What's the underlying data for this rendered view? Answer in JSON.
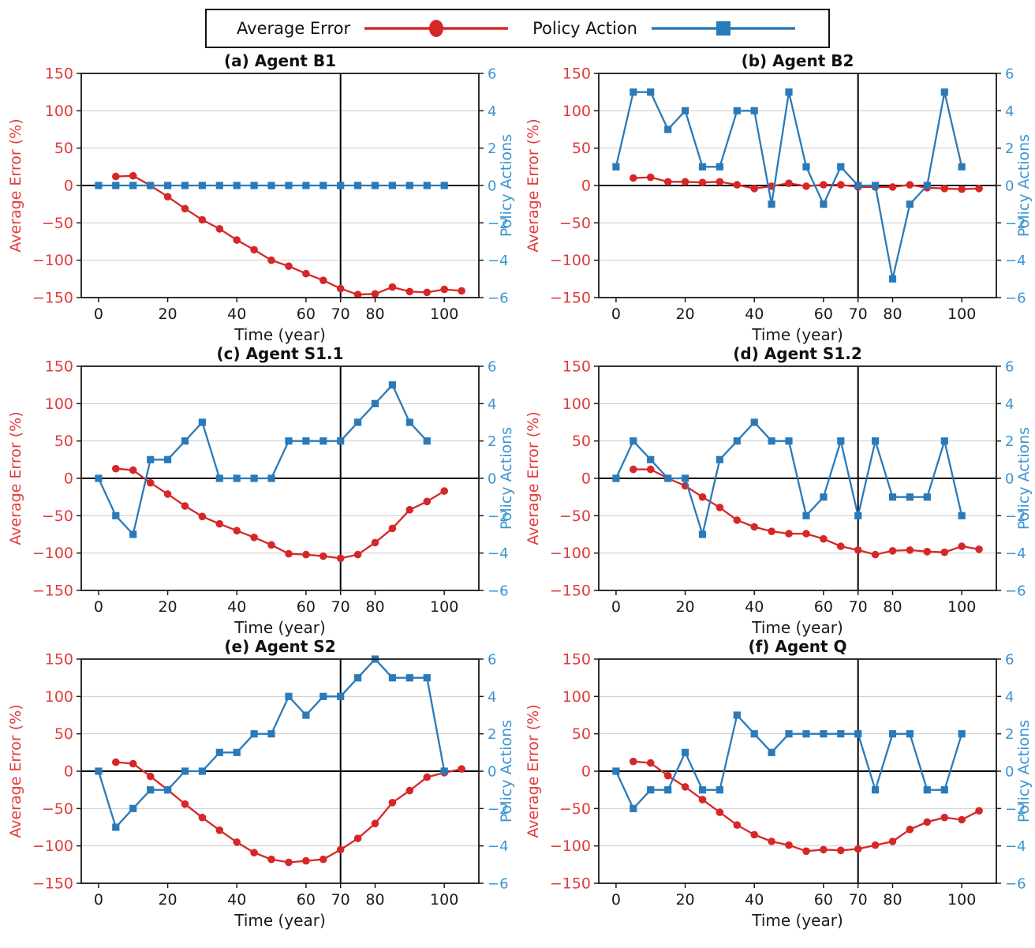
{
  "figure": {
    "legend": {
      "items": [
        {
          "label": "Average Error",
          "marker": "circle-icon"
        },
        {
          "label": "Policy Action",
          "marker": "square-icon"
        }
      ]
    },
    "axes": {
      "x_label": "Time (year)",
      "left_label": "Average Error (%)",
      "right_label": "Policy Actions",
      "x_ticks": [
        0,
        20,
        40,
        60,
        70,
        80,
        100
      ],
      "left_ticks": [
        150,
        100,
        50,
        0,
        -50,
        -100,
        -150
      ],
      "right_ticks": [
        6,
        4,
        2,
        0,
        -2,
        -4,
        -6
      ],
      "x_range": [
        -5,
        110
      ],
      "left_range": [
        -150,
        150
      ],
      "right_range": [
        -6,
        6
      ],
      "vline_x": 70,
      "hline_y": 0,
      "grid": "horizontal"
    },
    "colors": {
      "error_line": "#d62728",
      "error_text": "#e23b3b",
      "action_line": "#2a7ab9",
      "action_text": "#3a95d0",
      "grid": "#cccccc",
      "axis": "#1a1a1a",
      "reference_line": "#000000",
      "tick_text": "#1a1a1a"
    }
  },
  "chart_data": [
    {
      "id": "a",
      "title": "(a) Agent B1",
      "type": "line",
      "series": [
        {
          "name": "Average Error",
          "axis": "left",
          "marker": "circle",
          "x": [
            5,
            10,
            15,
            20,
            25,
            30,
            35,
            40,
            45,
            50,
            55,
            60,
            65,
            70,
            75,
            80,
            85,
            90,
            95,
            100,
            105
          ],
          "values": [
            12,
            13,
            0,
            -15,
            -31,
            -46,
            -58,
            -73,
            -86,
            -100,
            -108,
            -118,
            -127,
            -138,
            -146,
            -145,
            -136,
            -142,
            -143,
            -139,
            -141
          ]
        },
        {
          "name": "Policy Action",
          "axis": "right",
          "marker": "square",
          "x": [
            0,
            5,
            10,
            15,
            20,
            25,
            30,
            35,
            40,
            45,
            50,
            55,
            60,
            65,
            70,
            75,
            80,
            85,
            90,
            95,
            100
          ],
          "values": [
            0,
            0,
            0,
            0,
            0,
            0,
            0,
            0,
            0,
            0,
            0,
            0,
            0,
            0,
            0,
            0,
            0,
            0,
            0,
            0,
            0
          ]
        }
      ]
    },
    {
      "id": "b",
      "title": "(b) Agent B2",
      "type": "line",
      "series": [
        {
          "name": "Average Error",
          "axis": "left",
          "marker": "circle",
          "x": [
            5,
            10,
            15,
            20,
            25,
            30,
            35,
            40,
            45,
            50,
            55,
            60,
            65,
            70,
            75,
            80,
            85,
            90,
            95,
            100,
            105
          ],
          "values": [
            10,
            11,
            5,
            5,
            4,
            5,
            1,
            -4,
            -1,
            3,
            -1,
            1,
            1,
            -2,
            -2,
            -2,
            1,
            -3,
            -4,
            -5,
            -4
          ]
        },
        {
          "name": "Policy Action",
          "axis": "right",
          "marker": "square",
          "x": [
            0,
            5,
            10,
            15,
            20,
            25,
            30,
            35,
            40,
            45,
            50,
            55,
            60,
            65,
            70,
            75,
            80,
            85,
            90,
            95,
            100
          ],
          "values": [
            1,
            5,
            5,
            3,
            4,
            1,
            1,
            4,
            4,
            -1,
            5,
            1,
            -1,
            1,
            0,
            0,
            -5,
            -1,
            0,
            5,
            1
          ]
        }
      ]
    },
    {
      "id": "c",
      "title": "(c) Agent S1.1",
      "type": "line",
      "series": [
        {
          "name": "Average Error",
          "axis": "left",
          "marker": "circle",
          "x": [
            5,
            10,
            15,
            20,
            25,
            30,
            35,
            40,
            45,
            50,
            55,
            60,
            65,
            70,
            75,
            80,
            85,
            90,
            95,
            100
          ],
          "values": [
            13,
            11,
            -6,
            -21,
            -37,
            -51,
            -61,
            -70,
            -79,
            -89,
            -101,
            -102,
            -104,
            -107,
            -102,
            -86,
            -67,
            -42,
            -31,
            -17
          ]
        },
        {
          "name": "Policy Action",
          "axis": "right",
          "marker": "square",
          "x": [
            0,
            5,
            10,
            15,
            20,
            25,
            30,
            35,
            40,
            45,
            50,
            55,
            60,
            65,
            70,
            75,
            80,
            85,
            90,
            95
          ],
          "values": [
            0,
            -2,
            -3,
            1,
            1,
            2,
            3,
            0,
            0,
            0,
            0,
            2,
            2,
            2,
            2,
            3,
            4,
            5,
            3,
            2
          ]
        }
      ]
    },
    {
      "id": "d",
      "title": "(d) Agent S1.2",
      "type": "line",
      "series": [
        {
          "name": "Average Error",
          "axis": "left",
          "marker": "circle",
          "x": [
            5,
            10,
            15,
            20,
            25,
            30,
            35,
            40,
            45,
            50,
            55,
            60,
            65,
            70,
            75,
            80,
            85,
            90,
            95,
            100,
            105
          ],
          "values": [
            12,
            12,
            0,
            -10,
            -25,
            -39,
            -56,
            -65,
            -71,
            -74,
            -74,
            -81,
            -91,
            -96,
            -102,
            -97,
            -96,
            -98,
            -99,
            -91,
            -95
          ]
        },
        {
          "name": "Policy Action",
          "axis": "right",
          "marker": "square",
          "x": [
            0,
            5,
            10,
            15,
            20,
            25,
            30,
            35,
            40,
            45,
            50,
            55,
            60,
            65,
            70,
            75,
            80,
            85,
            90,
            95,
            100
          ],
          "values": [
            0,
            2,
            1,
            0,
            0,
            -3,
            1,
            2,
            3,
            2,
            2,
            -2,
            -1,
            2,
            -2,
            2,
            -1,
            -1,
            -1,
            2,
            -2
          ]
        }
      ]
    },
    {
      "id": "e",
      "title": "(e) Agent S2",
      "type": "line",
      "series": [
        {
          "name": "Average Error",
          "axis": "left",
          "marker": "circle",
          "x": [
            5,
            10,
            15,
            20,
            25,
            30,
            35,
            40,
            45,
            50,
            55,
            60,
            65,
            70,
            75,
            80,
            85,
            90,
            95,
            100,
            105
          ],
          "values": [
            12,
            10,
            -7,
            -25,
            -44,
            -62,
            -79,
            -95,
            -109,
            -118,
            -122,
            -120,
            -118,
            -105,
            -90,
            -70,
            -42,
            -26,
            -8,
            -2,
            3
          ]
        },
        {
          "name": "Policy Action",
          "axis": "right",
          "marker": "square",
          "x": [
            0,
            5,
            10,
            15,
            20,
            25,
            30,
            35,
            40,
            45,
            50,
            55,
            60,
            65,
            70,
            75,
            80,
            85,
            90,
            95,
            100
          ],
          "values": [
            0,
            -3,
            -2,
            -1,
            -1,
            0,
            0,
            1,
            1,
            2,
            2,
            4,
            3,
            4,
            4,
            5,
            6,
            5,
            5,
            5,
            0
          ]
        }
      ]
    },
    {
      "id": "f",
      "title": "(f) Agent Q",
      "type": "line",
      "series": [
        {
          "name": "Average Error",
          "axis": "left",
          "marker": "circle",
          "x": [
            5,
            10,
            15,
            20,
            25,
            30,
            35,
            40,
            45,
            50,
            55,
            60,
            65,
            70,
            75,
            80,
            85,
            90,
            95,
            100,
            105
          ],
          "values": [
            13,
            11,
            -6,
            -21,
            -38,
            -55,
            -72,
            -85,
            -94,
            -99,
            -107,
            -105,
            -106,
            -104,
            -99,
            -94,
            -78,
            -68,
            -62,
            -65,
            -53
          ]
        },
        {
          "name": "Policy Action",
          "axis": "right",
          "marker": "square",
          "x": [
            0,
            5,
            10,
            15,
            20,
            25,
            30,
            35,
            40,
            45,
            50,
            55,
            60,
            65,
            70,
            75,
            80,
            85,
            90,
            95,
            100
          ],
          "values": [
            0,
            -2,
            -1,
            -1,
            1,
            -1,
            -1,
            3,
            2,
            1,
            2,
            2,
            2,
            2,
            2,
            -1,
            2,
            2,
            -1,
            -1,
            2
          ]
        }
      ]
    }
  ]
}
